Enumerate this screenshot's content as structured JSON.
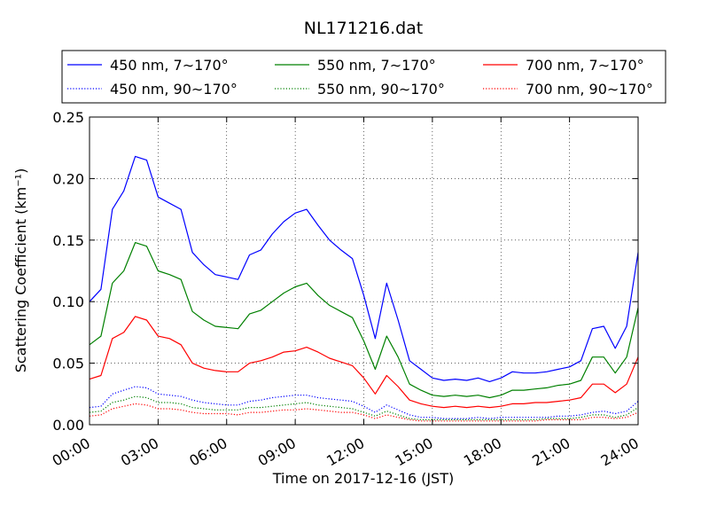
{
  "chart_data": {
    "type": "line",
    "title": "NL171216.dat",
    "xlabel": "Time on 2017-12-16 (JST)",
    "ylabel": "Scattering Coefficient (km⁻¹)",
    "xlim": [
      "00:00",
      "24:00"
    ],
    "ylim": [
      0,
      0.25
    ],
    "x_ticks": [
      "00:00",
      "03:00",
      "06:00",
      "09:00",
      "12:00",
      "15:00",
      "18:00",
      "21:00",
      "24:00"
    ],
    "y_ticks": [
      "0.00",
      "0.05",
      "0.10",
      "0.15",
      "0.20",
      "0.25"
    ],
    "grid": true,
    "legend_position": "top",
    "x": [
      "00:00",
      "00:30",
      "01:00",
      "01:30",
      "02:00",
      "02:30",
      "03:00",
      "03:30",
      "04:00",
      "04:30",
      "05:00",
      "05:30",
      "06:00",
      "06:30",
      "07:00",
      "07:30",
      "08:00",
      "08:30",
      "09:00",
      "09:30",
      "10:00",
      "10:30",
      "11:00",
      "11:30",
      "12:00",
      "12:30",
      "13:00",
      "13:30",
      "14:00",
      "14:30",
      "15:00",
      "15:30",
      "16:00",
      "16:30",
      "17:00",
      "17:30",
      "18:00",
      "18:30",
      "19:00",
      "19:30",
      "20:00",
      "20:30",
      "21:00",
      "21:30",
      "22:00",
      "22:30",
      "23:00",
      "23:30",
      "24:00"
    ],
    "series": [
      {
        "name": "450 nm, 7∼170°",
        "color": "#0000ff",
        "style": "solid",
        "values": [
          0.1,
          0.11,
          0.175,
          0.19,
          0.218,
          0.215,
          0.185,
          0.18,
          0.175,
          0.14,
          0.13,
          0.122,
          0.12,
          0.118,
          0.138,
          0.142,
          0.155,
          0.165,
          0.172,
          0.175,
          0.162,
          0.15,
          0.142,
          0.135,
          0.105,
          0.07,
          0.115,
          0.085,
          0.052,
          0.045,
          0.038,
          0.036,
          0.037,
          0.036,
          0.038,
          0.035,
          0.038,
          0.043,
          0.042,
          0.042,
          0.043,
          0.045,
          0.047,
          0.052,
          0.078,
          0.08,
          0.062,
          0.08,
          0.14
        ]
      },
      {
        "name": "450 nm, 90∼170°",
        "color": "#0000ff",
        "style": "dotted",
        "values": [
          0.014,
          0.015,
          0.025,
          0.028,
          0.031,
          0.03,
          0.025,
          0.024,
          0.023,
          0.02,
          0.018,
          0.017,
          0.016,
          0.016,
          0.019,
          0.02,
          0.022,
          0.023,
          0.024,
          0.024,
          0.022,
          0.021,
          0.02,
          0.019,
          0.015,
          0.01,
          0.016,
          0.012,
          0.008,
          0.006,
          0.006,
          0.005,
          0.005,
          0.005,
          0.006,
          0.005,
          0.006,
          0.006,
          0.006,
          0.006,
          0.006,
          0.007,
          0.007,
          0.008,
          0.01,
          0.011,
          0.009,
          0.011,
          0.019
        ]
      },
      {
        "name": "550 nm, 7∼170°",
        "color": "#008000",
        "style": "solid",
        "values": [
          0.065,
          0.072,
          0.115,
          0.125,
          0.148,
          0.145,
          0.125,
          0.122,
          0.118,
          0.092,
          0.085,
          0.08,
          0.079,
          0.078,
          0.09,
          0.093,
          0.1,
          0.107,
          0.112,
          0.115,
          0.105,
          0.097,
          0.092,
          0.087,
          0.068,
          0.045,
          0.072,
          0.055,
          0.033,
          0.028,
          0.024,
          0.023,
          0.024,
          0.023,
          0.024,
          0.022,
          0.024,
          0.028,
          0.028,
          0.029,
          0.03,
          0.032,
          0.033,
          0.036,
          0.055,
          0.055,
          0.042,
          0.055,
          0.095
        ]
      },
      {
        "name": "550 nm, 90∼170°",
        "color": "#008000",
        "style": "dotted",
        "values": [
          0.01,
          0.011,
          0.018,
          0.02,
          0.023,
          0.022,
          0.018,
          0.018,
          0.017,
          0.014,
          0.013,
          0.012,
          0.012,
          0.012,
          0.014,
          0.014,
          0.015,
          0.016,
          0.017,
          0.018,
          0.016,
          0.015,
          0.014,
          0.013,
          0.01,
          0.007,
          0.011,
          0.008,
          0.005,
          0.004,
          0.004,
          0.004,
          0.004,
          0.004,
          0.004,
          0.004,
          0.004,
          0.004,
          0.004,
          0.004,
          0.005,
          0.005,
          0.005,
          0.006,
          0.008,
          0.008,
          0.006,
          0.008,
          0.014
        ]
      },
      {
        "name": "700 nm, 7∼170°",
        "color": "#ff0000",
        "style": "solid",
        "values": [
          0.037,
          0.04,
          0.07,
          0.075,
          0.088,
          0.085,
          0.072,
          0.07,
          0.065,
          0.05,
          0.046,
          0.044,
          0.043,
          0.043,
          0.05,
          0.052,
          0.055,
          0.059,
          0.06,
          0.063,
          0.059,
          0.054,
          0.051,
          0.048,
          0.038,
          0.025,
          0.04,
          0.031,
          0.02,
          0.017,
          0.015,
          0.014,
          0.015,
          0.014,
          0.015,
          0.014,
          0.015,
          0.017,
          0.017,
          0.018,
          0.018,
          0.019,
          0.02,
          0.022,
          0.033,
          0.033,
          0.026,
          0.033,
          0.055
        ]
      },
      {
        "name": "700 nm, 90∼170°",
        "color": "#ff0000",
        "style": "dotted",
        "values": [
          0.007,
          0.008,
          0.013,
          0.015,
          0.017,
          0.016,
          0.013,
          0.013,
          0.012,
          0.01,
          0.009,
          0.009,
          0.009,
          0.008,
          0.01,
          0.01,
          0.011,
          0.012,
          0.012,
          0.013,
          0.012,
          0.011,
          0.01,
          0.01,
          0.008,
          0.005,
          0.008,
          0.006,
          0.004,
          0.003,
          0.003,
          0.003,
          0.003,
          0.003,
          0.003,
          0.003,
          0.003,
          0.003,
          0.003,
          0.003,
          0.004,
          0.004,
          0.004,
          0.004,
          0.006,
          0.006,
          0.005,
          0.006,
          0.01
        ]
      }
    ]
  }
}
